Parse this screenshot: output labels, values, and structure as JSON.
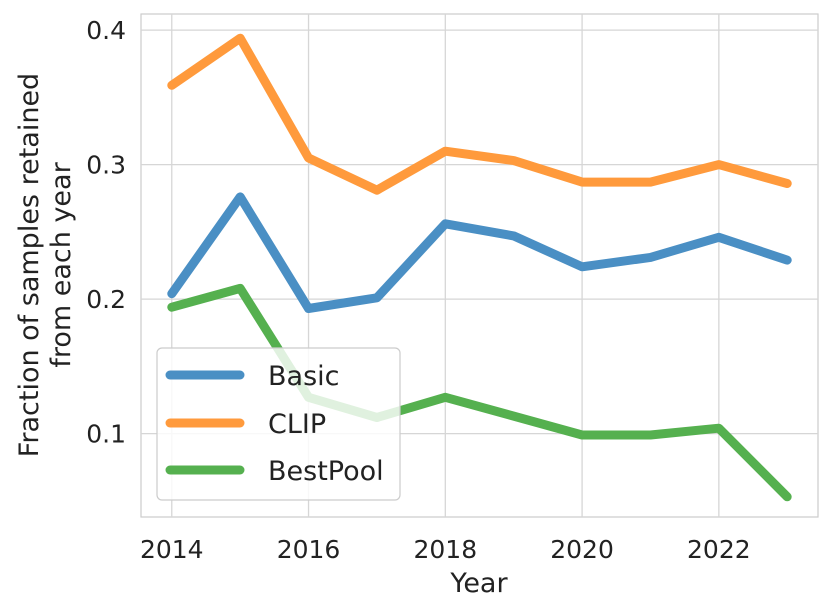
{
  "chart_data": {
    "type": "line",
    "title": "",
    "xlabel": "Year",
    "ylabel_lines": [
      "Fraction of samples retained",
      "from each year"
    ],
    "x": [
      2014,
      2015,
      2016,
      2017,
      2018,
      2019,
      2020,
      2021,
      2022,
      2023
    ],
    "x_ticks": [
      2014,
      2016,
      2018,
      2020,
      2022
    ],
    "x_tick_labels": [
      "2014",
      "2016",
      "2018",
      "2020",
      "2022"
    ],
    "y_ticks": [
      0.1,
      0.2,
      0.3,
      0.4
    ],
    "y_tick_labels": [
      "0.1",
      "0.2",
      "0.3",
      "0.4"
    ],
    "xlim": [
      2013.55,
      2023.45
    ],
    "ylim": [
      0.038,
      0.412
    ],
    "grid": true,
    "legend_position": "lower-left",
    "series": [
      {
        "name": "Basic",
        "color": "#4a8fc4",
        "values": [
          0.204,
          0.276,
          0.193,
          0.201,
          0.256,
          0.247,
          0.224,
          0.231,
          0.246,
          0.229
        ]
      },
      {
        "name": "CLIP",
        "color": "#ff9a3c",
        "values": [
          0.359,
          0.394,
          0.305,
          0.281,
          0.31,
          0.303,
          0.287,
          0.287,
          0.3,
          0.286
        ]
      },
      {
        "name": "BestPool",
        "color": "#55b04f",
        "values": [
          0.194,
          0.208,
          0.127,
          0.112,
          0.127,
          0.113,
          0.099,
          0.099,
          0.104,
          0.053
        ]
      }
    ]
  }
}
